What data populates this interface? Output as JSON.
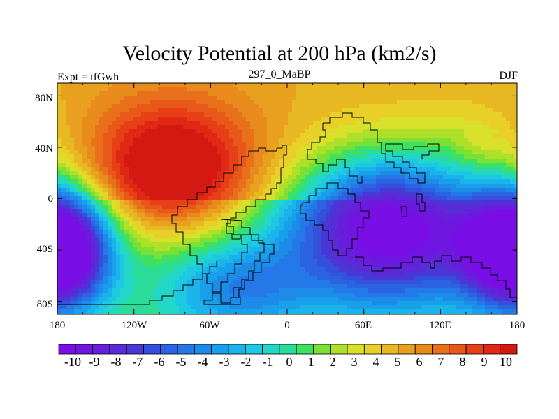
{
  "header": {
    "title": "Velocity Potential at 200 hPa (km2/s)",
    "left_subtitle": "Expt = tfGwh",
    "center_subtitle": "297_0_MaBP",
    "right_subtitle": "DJF"
  },
  "map": {
    "lat_labels": [
      "80N",
      "40N",
      "0",
      "40S",
      "80S"
    ],
    "lon_labels": [
      "180",
      "120W",
      "60W",
      "0",
      "60E",
      "120E",
      "180"
    ]
  },
  "colorbar": {
    "labels": [
      "-10",
      "-9",
      "-8",
      "-7",
      "-6",
      "-5",
      "-4",
      "-3",
      "-2",
      "-1",
      "0",
      "1",
      "2",
      "3",
      "4",
      "5",
      "6",
      "7",
      "8",
      "9",
      "10"
    ],
    "colors": [
      "#7a0ee6",
      "#6f17e0",
      "#6620dc",
      "#5a2cd8",
      "#4a38d6",
      "#3450dc",
      "#2c63e3",
      "#2478e8",
      "#1c8ce8",
      "#18a0ea",
      "#1ab4ea",
      "#1cc8e2",
      "#22d6c8",
      "#2adc98",
      "#3ee060",
      "#7ae034",
      "#aee02a",
      "#d8e02a",
      "#e8d028",
      "#e8b822",
      "#e8a01e",
      "#e88a1c",
      "#e8701a",
      "#e85818",
      "#e84016",
      "#e02814",
      "#d41812"
    ]
  },
  "field": {
    "centers": [
      {
        "lon": -90,
        "lat": 25,
        "value": 12,
        "sigma_lon": 45,
        "sigma_lat": 35
      },
      {
        "lon": 80,
        "lat": -25,
        "value": -11,
        "sigma_lon": 55,
        "sigma_lat": 40
      },
      {
        "lon": -170,
        "lat": -40,
        "value": -8,
        "sigma_lon": 25,
        "sigma_lat": 30
      },
      {
        "lon": 170,
        "lat": -40,
        "value": -8,
        "sigma_lon": 25,
        "sigma_lat": 30
      },
      {
        "lon": 150,
        "lat": 45,
        "value": 4,
        "sigma_lon": 35,
        "sigma_lat": 25
      },
      {
        "lon": -40,
        "lat": -70,
        "value": -4,
        "sigma_lon": 40,
        "sigma_lat": 25
      }
    ],
    "background": 5
  }
}
